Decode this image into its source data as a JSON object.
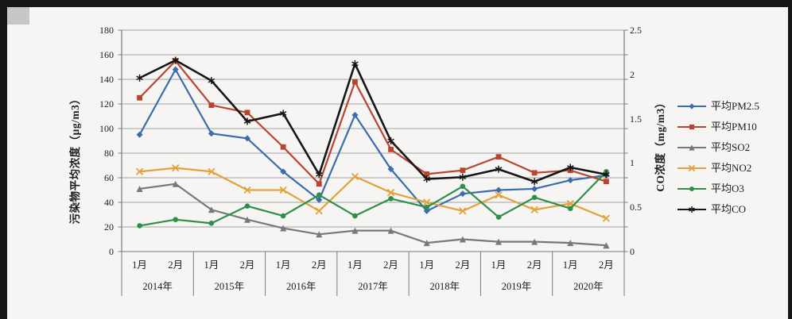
{
  "chart_data": {
    "type": "line",
    "title": "",
    "grid": "horizontal",
    "legend_position": "right",
    "y_left": {
      "label": "污染物平均浓度（μg/m3）",
      "min": 0,
      "max": 180,
      "step": 20
    },
    "y_right": {
      "label": "CO浓度（mg/m3）",
      "min": 0,
      "max": 2.5,
      "step": 0.5
    },
    "groups": [
      {
        "year": "2014年",
        "months": [
          "1月",
          "2月"
        ]
      },
      {
        "year": "2015年",
        "months": [
          "1月",
          "2月"
        ]
      },
      {
        "year": "2016年",
        "months": [
          "1月",
          "2月"
        ]
      },
      {
        "year": "2017年",
        "months": [
          "1月",
          "2月"
        ]
      },
      {
        "year": "2018年",
        "months": [
          "1月",
          "2月"
        ]
      },
      {
        "year": "2019年",
        "months": [
          "1月",
          "2月"
        ]
      },
      {
        "year": "2020年",
        "months": [
          "1月",
          "2月"
        ]
      }
    ],
    "series": [
      {
        "name": "平均PM2.5",
        "axis": "left",
        "color": "#3A6DAD",
        "marker": "diamond",
        "values": [
          95,
          148,
          96,
          92,
          65,
          42,
          111,
          67,
          33,
          47,
          50,
          51,
          58,
          62
        ]
      },
      {
        "name": "平均PM10",
        "axis": "left",
        "color": "#B9442F",
        "marker": "square",
        "values": [
          125,
          155,
          119,
          113,
          85,
          55,
          138,
          83,
          63,
          66,
          77,
          64,
          66,
          57
        ]
      },
      {
        "name": "平均SO2",
        "axis": "left",
        "color": "#787878",
        "marker": "triangle",
        "values": [
          51,
          55,
          34,
          26,
          19,
          14,
          17,
          17,
          7,
          10,
          8,
          8,
          7,
          5
        ]
      },
      {
        "name": "平均NO2",
        "axis": "left",
        "color": "#E2A23C",
        "marker": "x",
        "values": [
          65,
          68,
          65,
          50,
          50,
          33,
          61,
          48,
          40,
          33,
          46,
          34,
          39,
          27
        ]
      },
      {
        "name": "平均O3",
        "axis": "left",
        "color": "#2E9048",
        "marker": "circle",
        "values": [
          21,
          26,
          23,
          37,
          29,
          46,
          29,
          43,
          36,
          53,
          28,
          44,
          35,
          65
        ]
      },
      {
        "name": "平均CO",
        "axis": "right",
        "color": "#161616",
        "marker": "star",
        "values": [
          1.96,
          2.16,
          1.93,
          1.47,
          1.56,
          0.87,
          2.12,
          1.25,
          0.82,
          0.84,
          0.93,
          0.79,
          0.95,
          0.87
        ]
      }
    ],
    "colors": {
      "gridline": "#a3a3a3",
      "axis_line": "#7a7a7a",
      "text": "#1c1c1c"
    }
  }
}
